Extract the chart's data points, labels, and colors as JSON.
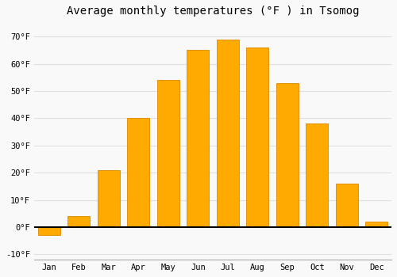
{
  "title": "Average monthly temperatures (°F ) in Tsomog",
  "months": [
    "Jan",
    "Feb",
    "Mar",
    "Apr",
    "May",
    "Jun",
    "Jul",
    "Aug",
    "Sep",
    "Oct",
    "Nov",
    "Dec"
  ],
  "values": [
    -3,
    4,
    21,
    40,
    54,
    65,
    69,
    66,
    53,
    38,
    16,
    2
  ],
  "bar_color": "#FFAA00",
  "bar_edge_color": "#DD8800",
  "ylim": [
    -12,
    75
  ],
  "yticks": [
    -10,
    0,
    10,
    20,
    30,
    40,
    50,
    60,
    70
  ],
  "ytick_labels": [
    "-10°F",
    "0°F",
    "10°F",
    "20°F",
    "30°F",
    "40°F",
    "50°F",
    "60°F",
    "70°F"
  ],
  "title_fontsize": 10,
  "tick_fontsize": 7.5,
  "background_color": "#f9f9f9",
  "grid_color": "#e0e0e0",
  "bar_width": 0.75
}
